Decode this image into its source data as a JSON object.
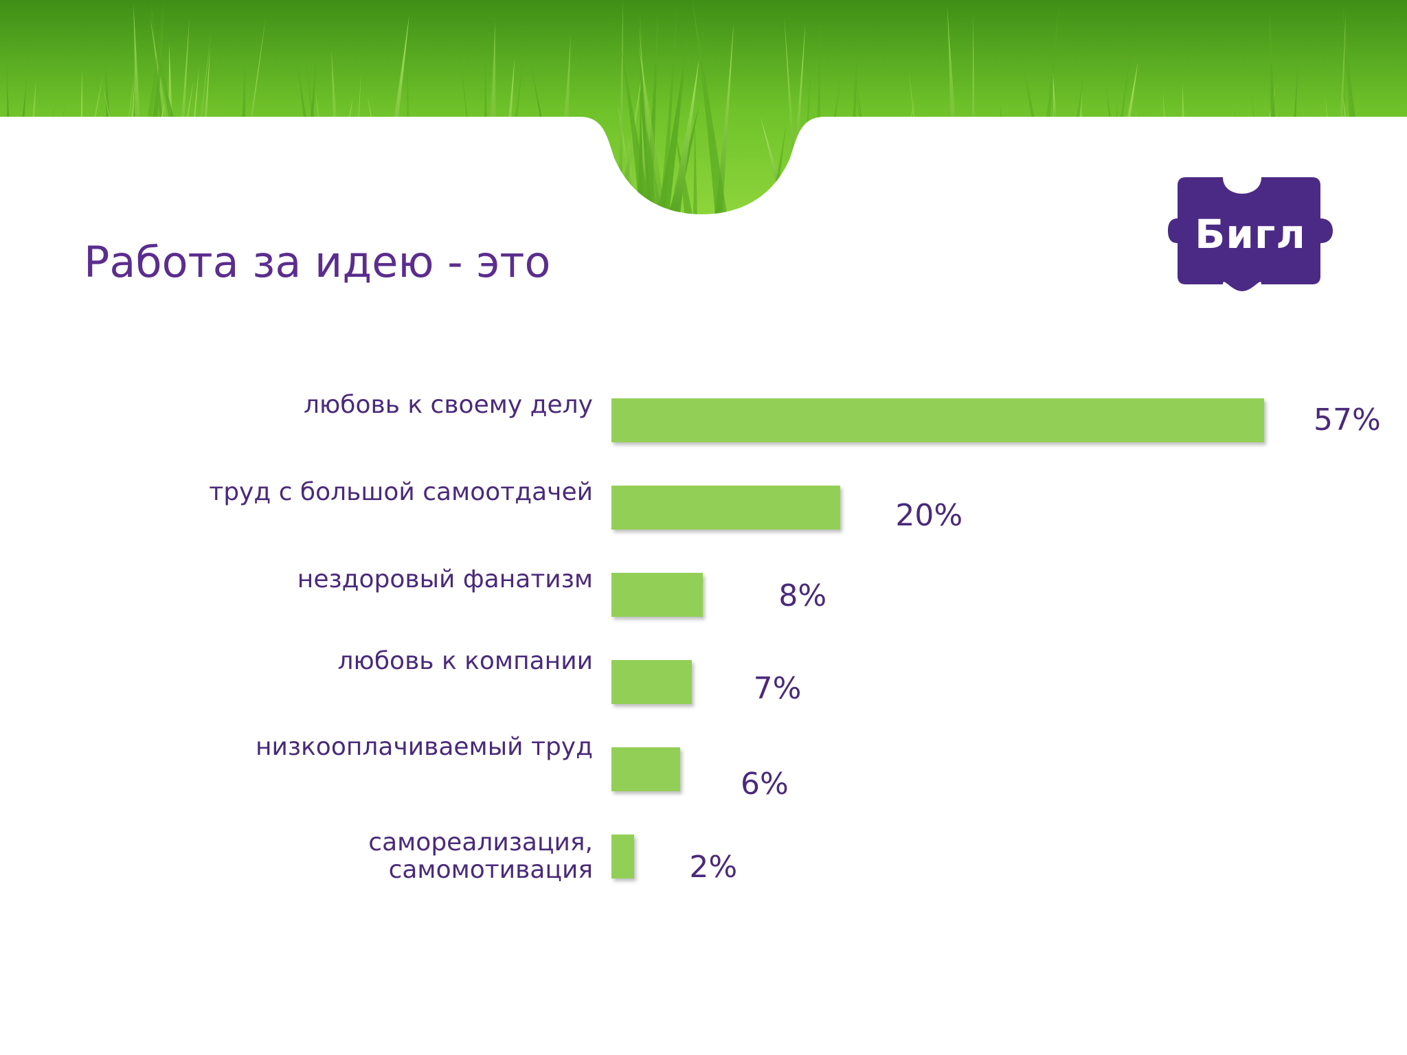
{
  "slide": {
    "title": "Работа за идею - это",
    "logo_text": "Бигл",
    "colors": {
      "title": "#5b2d8e",
      "bar": "#92cf56",
      "logo_bg": "#4b2a86",
      "label": "#4a2a7a"
    }
  },
  "chart_data": {
    "type": "bar",
    "orientation": "horizontal",
    "categories": [
      "любовь к своему делу",
      "труд с большой самоотдачей",
      "нездоровый фанатизм",
      "любовь к компании",
      "низкооплачиваемый труд",
      "самореализация,\nсамомотивация"
    ],
    "values": [
      57,
      20,
      8,
      7,
      6,
      2
    ],
    "value_labels": [
      "57%",
      "20%",
      "8%",
      "7%",
      "6%",
      "2%"
    ],
    "unit": "%",
    "xlim": [
      0,
      57
    ],
    "grid": false,
    "legend": "none"
  }
}
